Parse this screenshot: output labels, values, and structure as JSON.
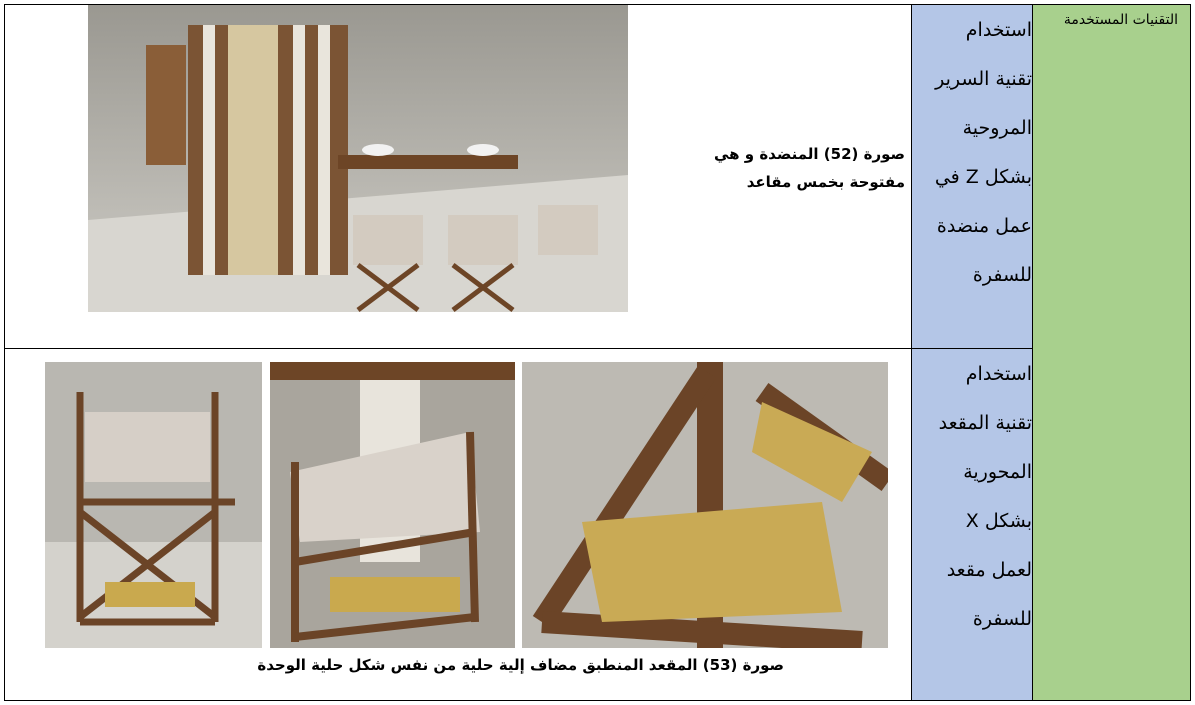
{
  "table": {
    "header": "التقنيات المستخدمة",
    "rows": [
      {
        "technique_lines": [
          "استخدام",
          "تقنية السرير",
          "المروحية",
          "بشكل Z في",
          "عمل منضدة",
          "للسفرة"
        ],
        "caption_lines": [
          "صورة (52) المنضدة و هي",
          "مفتوحة بخمس مقاعد"
        ]
      },
      {
        "technique_lines": [
          "استخدام",
          "تقنية المقعد",
          "المحورية",
          "بشكل X",
          "لعمل مقعد",
          "للسفرة"
        ],
        "caption_lines": [
          "صورة (53) المقعد المنطبق مضاف إلية حلية من نفس شكل حلية الوحدة"
        ]
      }
    ]
  }
}
